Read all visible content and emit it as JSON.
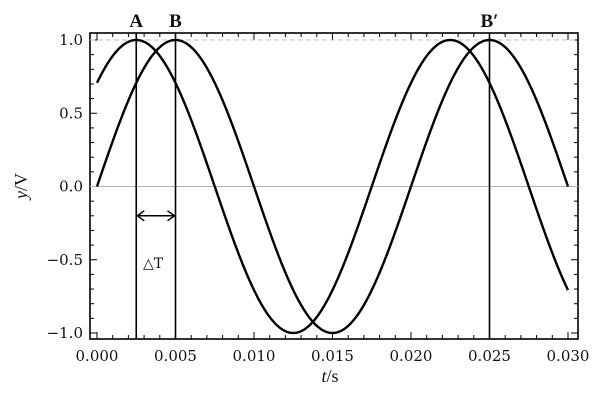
{
  "chart_data": {
    "type": "line",
    "xlabel": {
      "var": "t",
      "unit": "/s"
    },
    "ylabel": {
      "var": "y",
      "unit": "/V"
    },
    "xlim": [
      0.0,
      0.03
    ],
    "ylim": [
      -1.0,
      1.0
    ],
    "x_ticks": [
      "0.000",
      "0.005",
      "0.010",
      "0.015",
      "0.020",
      "0.025",
      "0.030"
    ],
    "y_ticks": [
      "-1.0",
      "-0.5",
      "0.0",
      "0.5",
      "1.0"
    ],
    "series": [
      {
        "function": "sin",
        "period": 0.02,
        "phase_offset_s": 0.0025,
        "amplitude": 1.0,
        "x_range": [
          0.0,
          0.03
        ]
      },
      {
        "function": "sin",
        "period": 0.02,
        "phase_offset_s": 0.0,
        "amplitude": 1.0,
        "x_range": [
          0.0,
          0.03
        ]
      }
    ],
    "markers": [
      {
        "label": "A",
        "x": 0.0025
      },
      {
        "label": "B",
        "x": 0.005
      },
      {
        "label": "B′",
        "x": 0.025
      }
    ],
    "interval": {
      "label": "△T",
      "from": 0.0025,
      "to": 0.005,
      "y": -0.2
    },
    "dashed_line_y": 1.0,
    "zero_line": true,
    "grid": false,
    "colors": {
      "curve": "#000000",
      "zero_line": "#b3b3b3",
      "frame": "#000000"
    }
  }
}
